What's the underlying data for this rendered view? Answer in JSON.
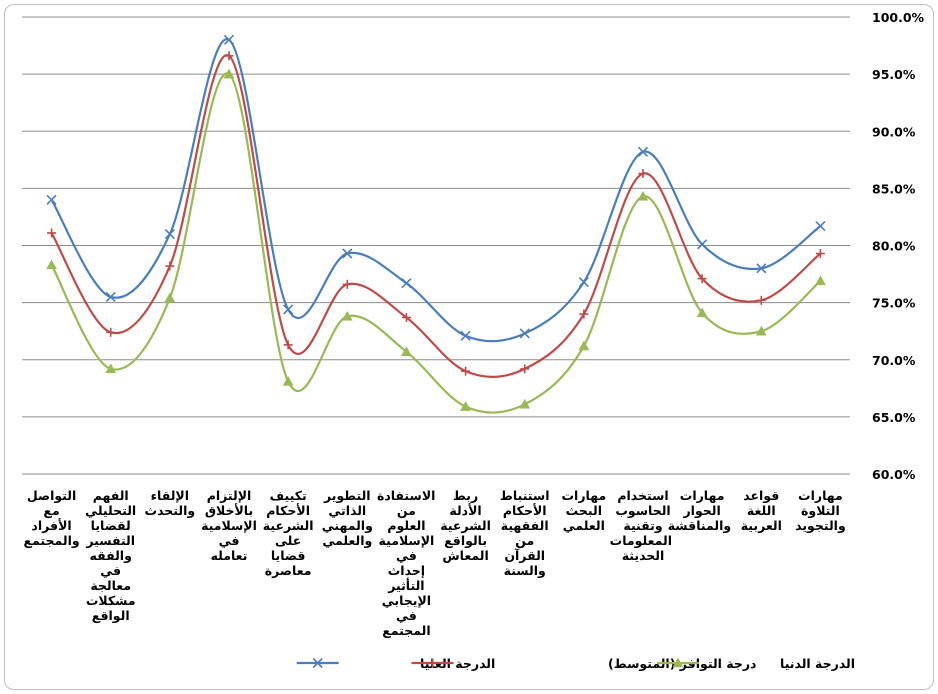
{
  "chart_data": {
    "type": "line",
    "smooth": true,
    "categories": [
      "مهارات التلاوة والتجويد",
      "قواعد اللغة العربية",
      "مهارات الحوار والمناقشة",
      "استخدام الحاسوب وتقنية المعلومات الحديثة",
      "مهارات البحث العلمي",
      "استنباط الأحكام الفقهية من القرآن والسنة",
      "ربط الأدلة الشرعية بالواقع المعاش",
      "الاستفادة من العلوم الإسلامية في إحداث التأثير الإيجابي في المجتمع",
      "التطوير الذاتي والمهني والعلمي",
      "تكييف الأحكام الشرعية على قضايا معاصرة",
      "الإلتزام بالأخلاق الإسلامية في تعامله",
      "الإلقاء والتحدث",
      "الفهم التحليلي لقضايا التفسير والفقه في معالجة مشكلات الواقع",
      "التواصل مع الأفراد والمجتمع"
    ],
    "x_direction": "right-to-left",
    "series": [
      {
        "name": "الدرجة العليا",
        "color": "#4a7ebb",
        "marker": "x",
        "values": [
          81.7,
          78.0,
          80.1,
          88.2,
          76.8,
          72.3,
          72.1,
          76.7,
          79.3,
          74.4,
          98.0,
          81.0,
          75.5,
          84.0
        ]
      },
      {
        "name": "درجة التوافر (المتوسط)",
        "color": "#be4b48",
        "marker": "plus",
        "values": [
          79.3,
          75.2,
          77.1,
          86.3,
          74.0,
          69.2,
          69.0,
          73.7,
          76.6,
          71.3,
          96.6,
          78.2,
          72.4,
          81.1
        ]
      },
      {
        "name": "الدرجة الدنيا",
        "color": "#98b954",
        "marker": "triangle",
        "values": [
          76.9,
          72.5,
          74.1,
          84.3,
          71.2,
          66.1,
          65.9,
          70.7,
          73.8,
          68.1,
          95.0,
          75.4,
          69.2,
          78.3
        ]
      }
    ],
    "y_axis": {
      "min": 60.0,
      "max": 100.0,
      "step": 5.0,
      "position": "right",
      "tick_labels": [
        "60.0%",
        "65.0%",
        "70.0%",
        "75.0%",
        "80.0%",
        "85.0%",
        "90.0%",
        "95.0%",
        "100.0%"
      ]
    },
    "grid": true,
    "legend_position": "bottom",
    "legend_order": [
      "الدرجة العليا",
      "درجة التوافر (المتوسط)",
      "الدرجة الدنيا"
    ]
  }
}
